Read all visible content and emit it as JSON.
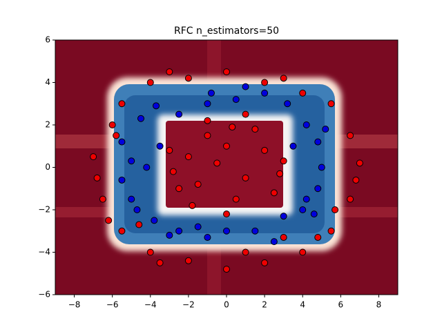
{
  "chart_data": {
    "type": "scatter",
    "title": "RFC n_estimators=50",
    "xlim": [
      -9,
      9
    ],
    "ylim": [
      -6,
      6
    ],
    "xticks": [
      {
        "value": -8,
        "label": "−8"
      },
      {
        "value": -6,
        "label": "−6"
      },
      {
        "value": -4,
        "label": "−4"
      },
      {
        "value": -2,
        "label": "−2"
      },
      0,
      2,
      4,
      6,
      8
    ],
    "yticks": [
      {
        "value": -6,
        "label": "−6"
      },
      {
        "value": -4,
        "label": "−4"
      },
      {
        "value": -2,
        "label": "−2"
      },
      0,
      2,
      4,
      6
    ],
    "series": [
      {
        "color": "#ee0000",
        "x": [
          -2,
          -1,
          0,
          1,
          2,
          -2.5,
          0.5,
          -1.5,
          2.5,
          1.5,
          -0.5,
          3,
          -3,
          0,
          -1,
          1,
          2.8,
          -2.8,
          0.3,
          -1.8,
          -7,
          -6.5,
          -6,
          -5.5,
          -4,
          -2,
          0,
          2,
          4,
          5.5,
          6.5,
          7,
          6.5,
          5.5,
          4,
          2,
          0,
          -2,
          -4,
          -5.5,
          -6.2,
          -4.6,
          4.8,
          3,
          -3.5,
          1,
          -6.8,
          6.8,
          3,
          -3,
          5.7,
          -5.8
        ],
        "values": [
          0.5,
          1.5,
          1,
          -0.5,
          0.8,
          -1,
          -1.5,
          -0.8,
          -1.2,
          1.8,
          0.2,
          0.3,
          0.8,
          -2.2,
          2.2,
          2.5,
          -0.3,
          -0.2,
          1.9,
          -1.8,
          0.5,
          -1.5,
          2,
          3,
          4,
          4.2,
          4.5,
          4,
          3.5,
          3,
          1.5,
          0.2,
          -1.5,
          -3,
          -4,
          -4.5,
          -4.8,
          -4.4,
          -4,
          -3,
          -2.5,
          -2.7,
          -3.3,
          -3.3,
          -4.5,
          -4,
          -0.5,
          -0.6,
          4.2,
          4.5,
          -2,
          1.5
        ]
      },
      {
        "color": "#0000dd",
        "x": [
          -5.5,
          -5.5,
          -5,
          -4.7,
          -4.5,
          -3.7,
          -2.5,
          -1,
          0.5,
          2,
          3.2,
          4.2,
          4.8,
          5,
          4.8,
          4,
          3,
          1.5,
          0,
          -1,
          -2.5,
          -3.8,
          -4.2,
          -3.5,
          3.5,
          4.2,
          -1.5,
          1,
          -0.8,
          2.5,
          -3,
          5.2,
          -5,
          4.6
        ],
        "values": [
          1.2,
          -0.6,
          -1.5,
          -2,
          2.3,
          2.9,
          2.5,
          3,
          3.2,
          3.5,
          3,
          2,
          1.2,
          0,
          -1,
          -2,
          -2.3,
          -3,
          -3,
          -3.3,
          -3,
          -2.5,
          0,
          1,
          1,
          -1.5,
          -2.8,
          3.8,
          3.5,
          -3.5,
          -3.2,
          1.8,
          0.3,
          -2.2
        ]
      }
    ]
  }
}
